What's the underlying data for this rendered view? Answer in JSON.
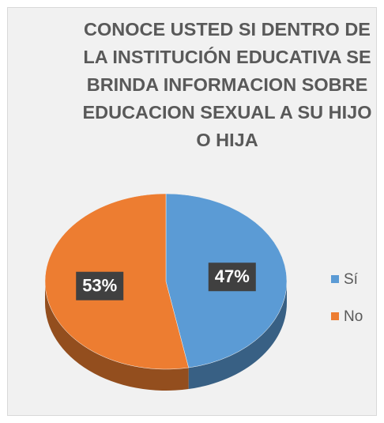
{
  "chart_data": {
    "type": "pie",
    "title": "CONOCE USTED SI DENTRO DE LA INSTITUCIÓN EDUCATIVA SE BRINDA INFORMACION SOBRE EDUCACION SEXUAL A SU HIJO O HIJA",
    "categories": [
      "Sí",
      "No"
    ],
    "values": [
      47,
      53
    ],
    "value_labels": [
      "47%",
      "53%"
    ],
    "colors": [
      "#5b9bd5",
      "#ed7d31"
    ],
    "legend": "right"
  }
}
